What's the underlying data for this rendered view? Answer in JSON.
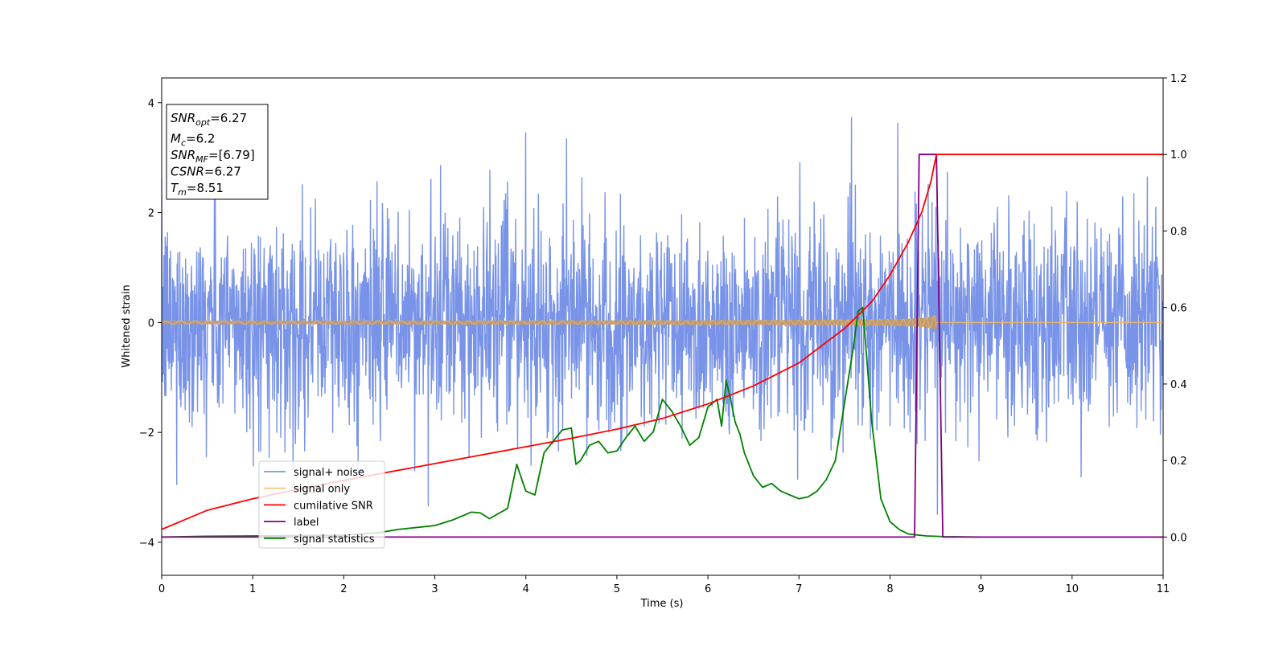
{
  "chart_data": {
    "type": "line",
    "xlabel": "Time (s)",
    "ylabel": "Whitened strain",
    "xlim": [
      0,
      11
    ],
    "ylim": [
      -4.6,
      4.45
    ],
    "y2lim": [
      -0.1,
      1.2
    ],
    "x_ticks": [
      "0",
      "1",
      "2",
      "3",
      "4",
      "5",
      "6",
      "7",
      "8",
      "9",
      "10",
      "11"
    ],
    "y_ticks": [
      "4",
      "2",
      "0",
      "−2",
      "−4"
    ],
    "y2_ticks": [
      "1.2",
      "1.0",
      "0.8",
      "0.6",
      "0.4",
      "0.2",
      "0.0"
    ],
    "grid": false,
    "legend_position": "lower-left",
    "info_box": [
      {
        "label": "SNR",
        "sub": "opt",
        "value": "=6.27"
      },
      {
        "label": "M",
        "sub": "c",
        "value": "=6.2"
      },
      {
        "label": "SNR",
        "sub": "MF",
        "value": "=[6.79]"
      },
      {
        "label": "CSNR",
        "sub": "",
        "value": "=6.27"
      },
      {
        "label": "T",
        "sub": "m",
        "value": "=8.51"
      }
    ],
    "series": [
      {
        "name": "signal+ noise",
        "color": "#7893e8",
        "axis": "left",
        "description_values": {
          "noise_sigma": 0.95,
          "spike_max": 4.0,
          "spike_min": -4.15
        }
      },
      {
        "name": "signal only",
        "color": "#f5c77a",
        "axis": "left",
        "chirp": {
          "start": 0,
          "merger_time": 8.51,
          "initial_amplitude": 0.03,
          "peak_amplitude": 0.6
        }
      },
      {
        "name": "cumilative SNR",
        "color": "#ff0000",
        "axis": "right",
        "x": [
          0,
          0.5,
          1,
          1.5,
          2,
          2.5,
          3,
          3.5,
          4,
          4.5,
          5,
          5.5,
          6,
          6.5,
          7,
          7.5,
          7.8,
          8.0,
          8.2,
          8.35,
          8.45,
          8.51,
          11
        ],
        "values": [
          0.02,
          0.07,
          0.1,
          0.125,
          0.148,
          0.17,
          0.192,
          0.214,
          0.236,
          0.258,
          0.282,
          0.31,
          0.348,
          0.395,
          0.455,
          0.545,
          0.615,
          0.685,
          0.77,
          0.85,
          0.93,
          1.0,
          1.0
        ]
      },
      {
        "name": "label",
        "color": "#800080",
        "axis": "right",
        "x": [
          0,
          8.27,
          8.32,
          8.51,
          8.58,
          11
        ],
        "values": [
          0,
          0,
          1,
          1,
          0,
          0
        ]
      },
      {
        "name": "signal statistics",
        "color": "#008000",
        "axis": "right",
        "x": [
          0,
          0.5,
          1,
          1.5,
          2,
          2.4,
          2.6,
          2.8,
          3.0,
          3.2,
          3.4,
          3.5,
          3.6,
          3.8,
          3.9,
          4.0,
          4.1,
          4.2,
          4.3,
          4.4,
          4.5,
          4.55,
          4.6,
          4.7,
          4.8,
          4.9,
          5.0,
          5.1,
          5.2,
          5.3,
          5.4,
          5.5,
          5.6,
          5.7,
          5.8,
          5.9,
          6.0,
          6.1,
          6.15,
          6.2,
          6.25,
          6.3,
          6.35,
          6.4,
          6.5,
          6.6,
          6.7,
          6.8,
          6.9,
          7.0,
          7.1,
          7.2,
          7.3,
          7.4,
          7.5,
          7.6,
          7.65,
          7.7,
          7.75,
          7.8,
          7.85,
          7.9,
          8.0,
          8.1,
          8.2,
          8.4,
          8.6,
          9.0,
          10.0,
          11.0
        ],
        "values": [
          0.0,
          0.002,
          0.003,
          0.004,
          0.005,
          0.012,
          0.02,
          0.025,
          0.03,
          0.045,
          0.065,
          0.063,
          0.048,
          0.075,
          0.19,
          0.12,
          0.11,
          0.22,
          0.25,
          0.28,
          0.285,
          0.19,
          0.2,
          0.24,
          0.25,
          0.22,
          0.225,
          0.26,
          0.29,
          0.25,
          0.275,
          0.36,
          0.33,
          0.29,
          0.24,
          0.26,
          0.34,
          0.36,
          0.29,
          0.41,
          0.36,
          0.3,
          0.27,
          0.22,
          0.16,
          0.13,
          0.14,
          0.12,
          0.11,
          0.1,
          0.105,
          0.12,
          0.15,
          0.2,
          0.35,
          0.5,
          0.59,
          0.6,
          0.45,
          0.3,
          0.2,
          0.1,
          0.04,
          0.02,
          0.008,
          0.003,
          0.001,
          0.0,
          0.0,
          0.0
        ]
      }
    ]
  }
}
